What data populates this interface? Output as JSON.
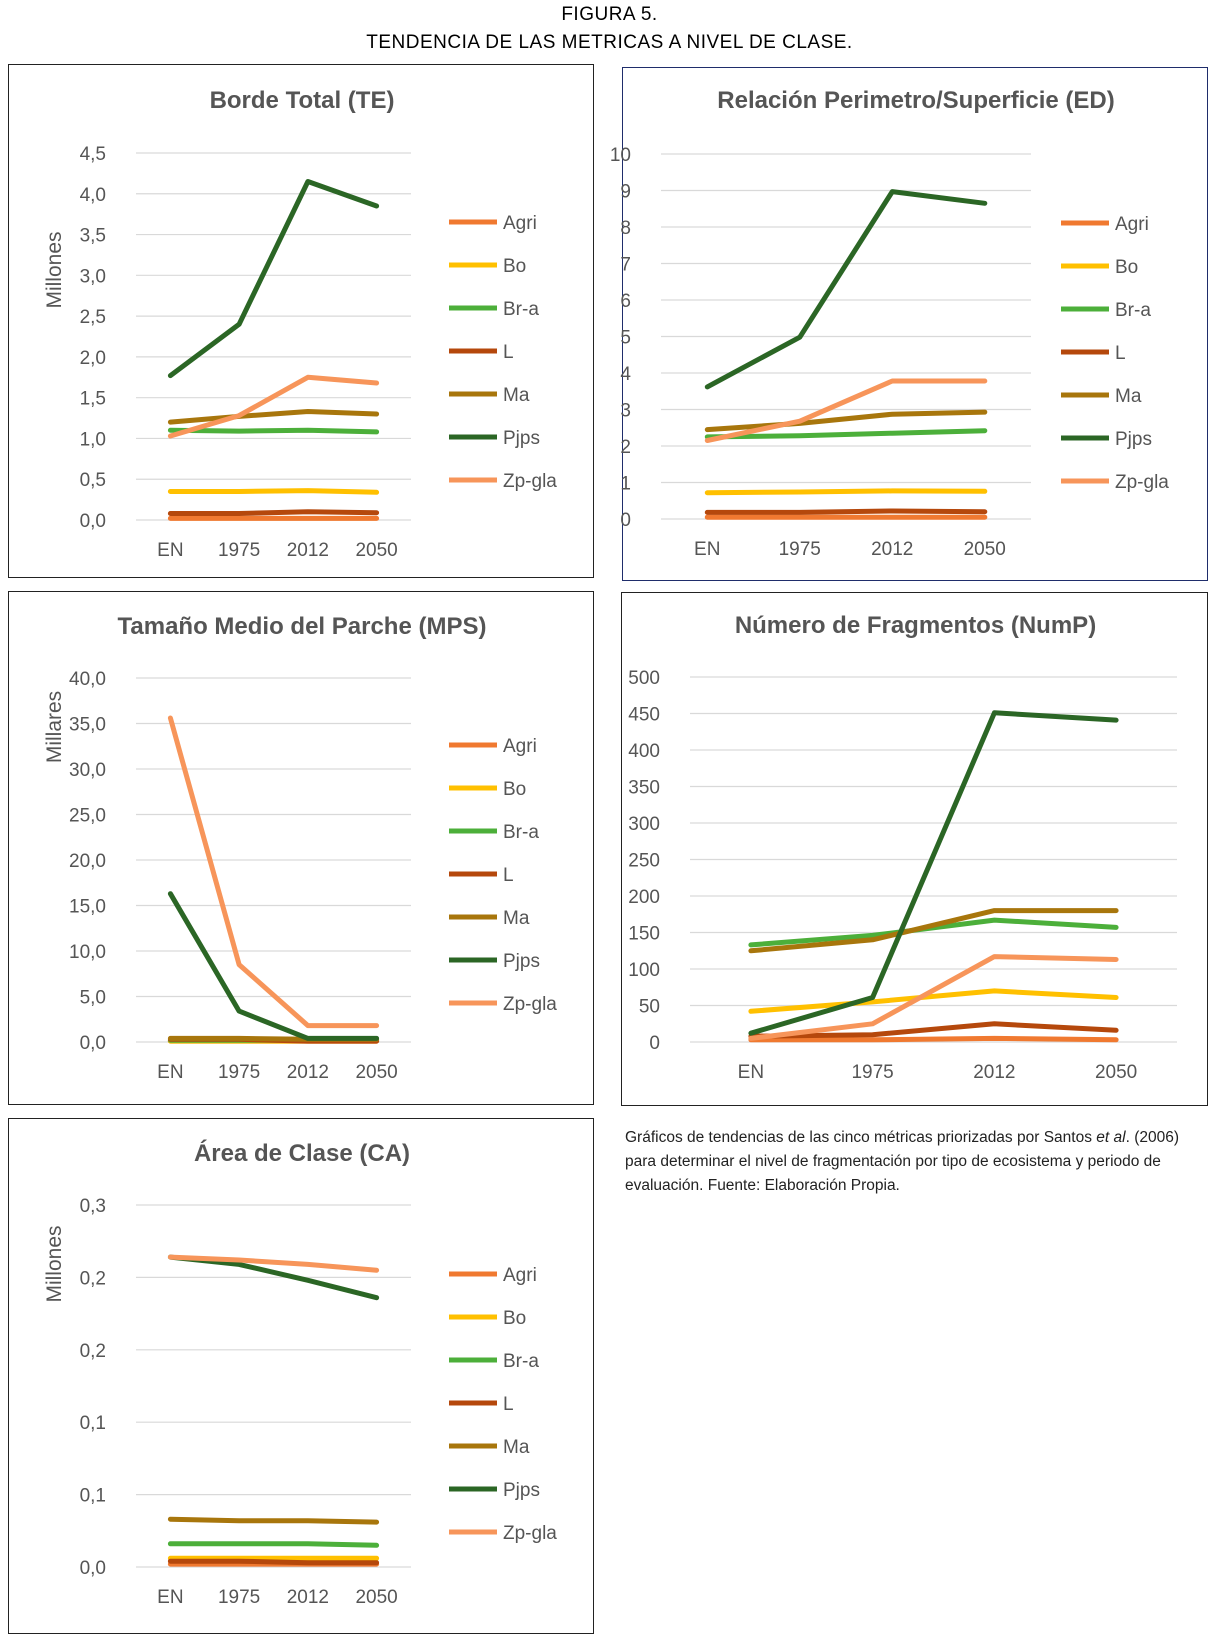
{
  "figure": {
    "label": "FIGURA 5.",
    "title": "TENDENCIA DE LAS METRICAS A NIVEL DE CLASE."
  },
  "caption": {
    "before": "Gráficos de tendencias de las cinco métricas priorizadas por Santos ",
    "italic": "et al",
    "after": ". (2006) para determinar el nivel de fragmentación por tipo de ecosistema y periodo de evaluación. Fuente: Elaboración Propia."
  },
  "colors": {
    "Agri": "#f07930",
    "Bo": "#ffc000",
    "Br-a": "#4caf3a",
    "L": "#b5480c",
    "Ma": "#a8760c",
    "Pjps": "#2b6625",
    "Zp-gla": "#f7955a"
  },
  "chart_data": [
    {
      "type": "line",
      "title": "Borde Total (TE)",
      "ylabel": "Millones",
      "categories": [
        "EN",
        "1975",
        "2012",
        "2050"
      ],
      "yticks": [
        "0,0",
        "0,5",
        "1,0",
        "1,5",
        "2,0",
        "2,5",
        "3,0",
        "3,5",
        "4,0",
        "4,5"
      ],
      "ylim": [
        0,
        4.5
      ],
      "grid": true,
      "legend": "right",
      "series": [
        {
          "name": "Agri",
          "values": [
            0.02,
            0.02,
            0.02,
            0.02
          ]
        },
        {
          "name": "Bo",
          "values": [
            0.35,
            0.35,
            0.36,
            0.34
          ]
        },
        {
          "name": "Br-a",
          "values": [
            1.1,
            1.09,
            1.1,
            1.08
          ]
        },
        {
          "name": "L",
          "values": [
            0.08,
            0.08,
            0.1,
            0.09
          ]
        },
        {
          "name": "Ma",
          "values": [
            1.2,
            1.27,
            1.33,
            1.3
          ]
        },
        {
          "name": "Pjps",
          "values": [
            1.77,
            2.4,
            4.15,
            3.85
          ]
        },
        {
          "name": "Zp-gla",
          "values": [
            1.03,
            1.28,
            1.75,
            1.68
          ]
        }
      ]
    },
    {
      "type": "line",
      "title": "Relación Perimetro/Superficie (ED)",
      "ylabel": "",
      "categories": [
        "EN",
        "1975",
        "2012",
        "2050"
      ],
      "yticks": [
        "0",
        "1",
        "2",
        "3",
        "4",
        "5",
        "6",
        "7",
        "8",
        "9",
        "10"
      ],
      "ylim": [
        0,
        10
      ],
      "grid": true,
      "legend": "right",
      "series": [
        {
          "name": "Agri",
          "values": [
            0.05,
            0.05,
            0.05,
            0.05
          ]
        },
        {
          "name": "Bo",
          "values": [
            0.72,
            0.74,
            0.77,
            0.76
          ]
        },
        {
          "name": "Br-a",
          "values": [
            2.25,
            2.28,
            2.35,
            2.42
          ]
        },
        {
          "name": "L",
          "values": [
            0.18,
            0.18,
            0.22,
            0.2
          ]
        },
        {
          "name": "Ma",
          "values": [
            2.45,
            2.62,
            2.87,
            2.93
          ]
        },
        {
          "name": "Pjps",
          "values": [
            3.62,
            4.98,
            8.97,
            8.65
          ]
        },
        {
          "name": "Zp-gla",
          "values": [
            2.15,
            2.68,
            3.78,
            3.78
          ]
        }
      ]
    },
    {
      "type": "line",
      "title": "Tamaño Medio del Parche (MPS)",
      "ylabel": "Millares",
      "categories": [
        "EN",
        "1975",
        "2012",
        "2050"
      ],
      "yticks": [
        "0,0",
        "5,0",
        "10,0",
        "15,0",
        "20,0",
        "25,0",
        "30,0",
        "35,0",
        "40,0"
      ],
      "ylim": [
        0,
        40
      ],
      "grid": true,
      "legend": "right",
      "series": [
        {
          "name": "Agri",
          "values": [
            0.1,
            0.1,
            0.1,
            0.1
          ]
        },
        {
          "name": "Bo",
          "values": [
            0.1,
            0.1,
            0.1,
            0.1
          ]
        },
        {
          "name": "Br-a",
          "values": [
            0.2,
            0.2,
            0.2,
            0.2
          ]
        },
        {
          "name": "L",
          "values": [
            0.3,
            0.3,
            0.1,
            0.1
          ]
        },
        {
          "name": "Ma",
          "values": [
            0.4,
            0.4,
            0.3,
            0.3
          ]
        },
        {
          "name": "Pjps",
          "values": [
            16.3,
            3.4,
            0.4,
            0.4
          ]
        },
        {
          "name": "Zp-gla",
          "values": [
            35.6,
            8.5,
            1.8,
            1.8
          ]
        }
      ]
    },
    {
      "type": "line",
      "title": "Número de Fragmentos (NumP)",
      "ylabel": "",
      "categories": [
        "EN",
        "1975",
        "2012",
        "2050"
      ],
      "yticks": [
        "0",
        "50",
        "100",
        "150",
        "200",
        "250",
        "300",
        "350",
        "400",
        "450",
        "500"
      ],
      "ylim": [
        0,
        500
      ],
      "grid": true,
      "legend": "none",
      "series": [
        {
          "name": "Agri",
          "values": [
            3,
            3,
            5,
            3
          ]
        },
        {
          "name": "Bo",
          "values": [
            42,
            55,
            70,
            61
          ]
        },
        {
          "name": "Br-a",
          "values": [
            133,
            146,
            167,
            157
          ]
        },
        {
          "name": "L",
          "values": [
            8,
            10,
            25,
            16
          ]
        },
        {
          "name": "Ma",
          "values": [
            125,
            140,
            180,
            180
          ]
        },
        {
          "name": "Pjps",
          "values": [
            12,
            61,
            451,
            441
          ]
        },
        {
          "name": "Zp-gla",
          "values": [
            5,
            25,
            117,
            113
          ]
        }
      ]
    },
    {
      "type": "line",
      "title": "Área de Clase (CA)",
      "ylabel": "Millones",
      "categories": [
        "EN",
        "1975",
        "2012",
        "2050"
      ],
      "yticks": [
        "0,0",
        "0,1",
        "0,1",
        "0,2",
        "0,2",
        "0,3"
      ],
      "ylim": [
        0,
        0.25
      ],
      "grid": true,
      "legend": "right",
      "series": [
        {
          "name": "Agri",
          "values": [
            0.002,
            0.002,
            0.002,
            0.002
          ]
        },
        {
          "name": "Bo",
          "values": [
            0.006,
            0.006,
            0.006,
            0.006
          ]
        },
        {
          "name": "Br-a",
          "values": [
            0.016,
            0.016,
            0.016,
            0.015
          ]
        },
        {
          "name": "L",
          "values": [
            0.004,
            0.004,
            0.003,
            0.003
          ]
        },
        {
          "name": "Ma",
          "values": [
            0.033,
            0.032,
            0.032,
            0.031
          ]
        },
        {
          "name": "Pjps",
          "values": [
            0.214,
            0.209,
            0.198,
            0.186
          ]
        },
        {
          "name": "Zp-gla",
          "values": [
            0.214,
            0.212,
            0.209,
            0.205
          ]
        }
      ]
    }
  ]
}
